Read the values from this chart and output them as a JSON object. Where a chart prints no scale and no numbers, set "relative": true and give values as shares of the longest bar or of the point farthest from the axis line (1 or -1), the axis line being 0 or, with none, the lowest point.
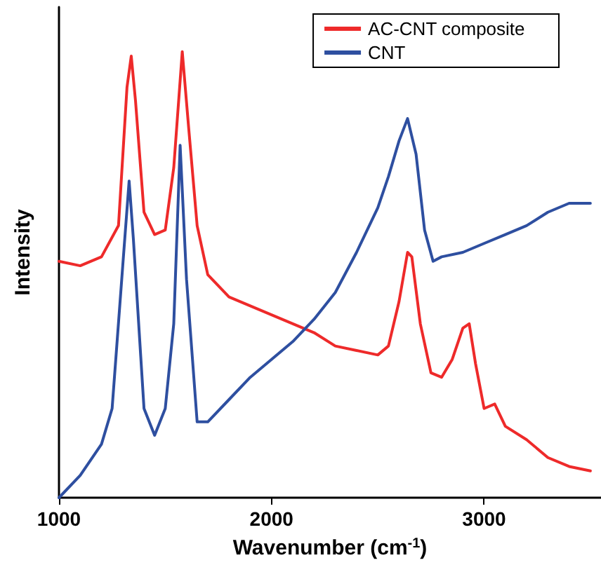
{
  "chart_data": {
    "type": "line",
    "relative": true,
    "xlabel": "Wavenumber (cm$^{-1}$)",
    "ylabel": "Intensity",
    "xlim": [
      1000,
      3550
    ],
    "xticks": [
      1000,
      2000,
      3000
    ],
    "legend": "top right",
    "grid": false,
    "marker": "none",
    "line_style": "solid",
    "series": [
      {
        "name": "AC-CNT composite",
        "color": "#ee2a2a",
        "x": [
          1000,
          1100,
          1200,
          1280,
          1320,
          1340,
          1360,
          1400,
          1450,
          1500,
          1540,
          1580,
          1610,
          1650,
          1700,
          1800,
          1900,
          2000,
          2100,
          2200,
          2300,
          2400,
          2500,
          2550,
          2600,
          2640,
          2660,
          2700,
          2750,
          2800,
          2850,
          2900,
          2930,
          2960,
          3000,
          3050,
          3100,
          3200,
          3300,
          3400,
          3500
        ],
        "values": [
          0.53,
          0.52,
          0.54,
          0.61,
          0.92,
          0.99,
          0.89,
          0.64,
          0.59,
          0.6,
          0.74,
          1.0,
          0.83,
          0.61,
          0.5,
          0.45,
          0.43,
          0.41,
          0.39,
          0.37,
          0.34,
          0.33,
          0.32,
          0.34,
          0.44,
          0.55,
          0.54,
          0.39,
          0.28,
          0.27,
          0.31,
          0.38,
          0.39,
          0.3,
          0.2,
          0.21,
          0.16,
          0.13,
          0.09,
          0.07,
          0.06
        ]
      },
      {
        "name": "CNT",
        "color": "#2e4fa0",
        "x": [
          1000,
          1100,
          1200,
          1250,
          1300,
          1330,
          1350,
          1400,
          1450,
          1500,
          1540,
          1570,
          1600,
          1650,
          1700,
          1800,
          1900,
          2000,
          2100,
          2200,
          2300,
          2400,
          2500,
          2550,
          2600,
          2640,
          2680,
          2720,
          2760,
          2800,
          2900,
          3000,
          3100,
          3200,
          3300,
          3400,
          3500
        ],
        "values": [
          0,
          0.05,
          0.12,
          0.2,
          0.52,
          0.71,
          0.58,
          0.2,
          0.14,
          0.2,
          0.39,
          0.79,
          0.49,
          0.17,
          0.17,
          0.22,
          0.27,
          0.31,
          0.35,
          0.4,
          0.46,
          0.55,
          0.65,
          0.72,
          0.8,
          0.85,
          0.77,
          0.6,
          0.53,
          0.54,
          0.55,
          0.57,
          0.59,
          0.61,
          0.64,
          0.66,
          0.66
        ]
      }
    ]
  }
}
